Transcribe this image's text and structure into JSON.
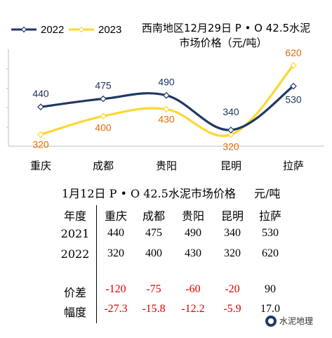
{
  "chart_data": {
    "type": "line",
    "title_lines": [
      "西南地区12月29日  P • O 42.5水泥",
      "市场价格（元/吨）"
    ],
    "categories": [
      "重庆",
      "成都",
      "贵阳",
      "昆明",
      "拉萨"
    ],
    "series": [
      {
        "name": "2022",
        "values": [
          440,
          475,
          490,
          340,
          530
        ],
        "color": "#1f3864",
        "marker": "diamond"
      },
      {
        "name": "2023",
        "values": [
          320,
          400,
          430,
          320,
          620
        ],
        "color": "#ffd633",
        "marker": "diamond"
      }
    ],
    "label_colors": {
      "2022": "#1f3864",
      "2023": "#e36c09"
    },
    "ylim": [
      270,
      690
    ],
    "grid": false,
    "legend_position": "top-left"
  },
  "table": {
    "title": "1月12日 P • O 42.5水泥市场价格",
    "unit": "元/吨",
    "header": {
      "label": "年度",
      "cells": [
        "重庆",
        "成都",
        "贵阳",
        "昆明",
        "拉萨"
      ]
    },
    "rows": [
      {
        "label": "2021",
        "cells": [
          "440",
          "475",
          "490",
          "340",
          "530"
        ]
      },
      {
        "label": "2022",
        "cells": [
          "320",
          "400",
          "430",
          "320",
          "620"
        ]
      },
      {
        "label": "价差",
        "cells": [
          "-120",
          "-75",
          "-60",
          "-20",
          "90"
        ]
      },
      {
        "label": "幅度",
        "cells": [
          "-27.3",
          "-15.8",
          "-12.2",
          "-5.9",
          "17.0"
        ]
      }
    ]
  },
  "watermark": {
    "text": "水泥地理",
    "icon": "wechat-logo-icon"
  }
}
